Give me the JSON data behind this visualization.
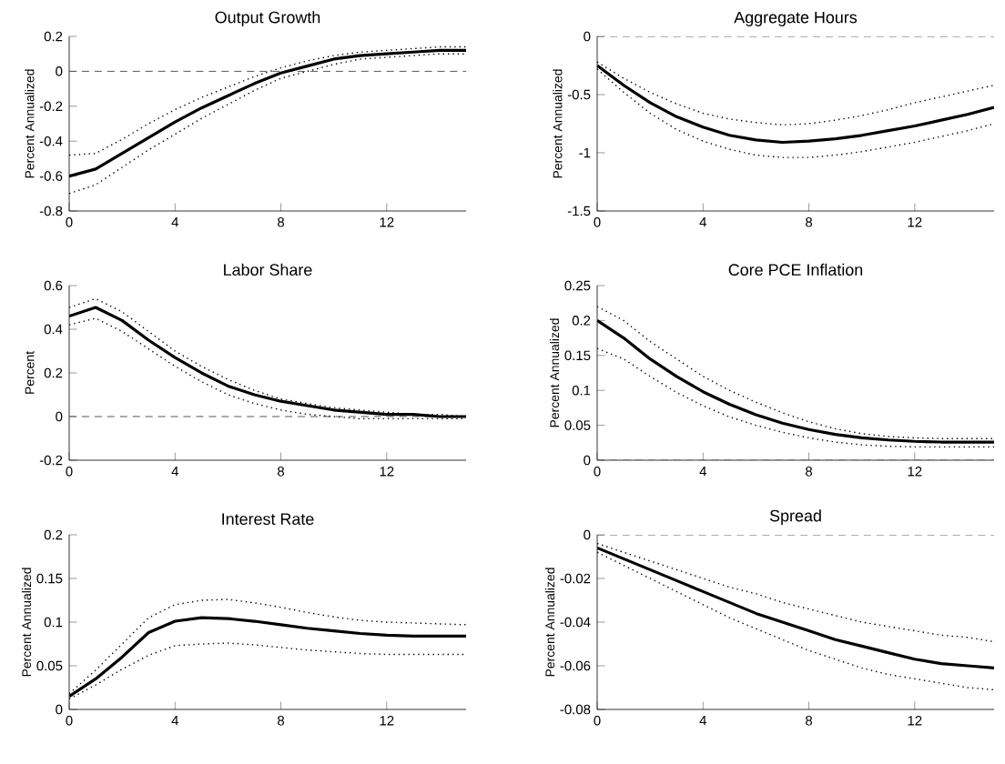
{
  "chart_data": [
    {
      "type": "line",
      "title": "Output Growth",
      "ylabel": "Percent Annualized",
      "xlim": [
        0,
        15
      ],
      "xticks": [
        0,
        4,
        8,
        12
      ],
      "ylim": [
        -0.8,
        0.2
      ],
      "yticks": [
        -0.8,
        -0.6,
        -0.4,
        -0.2,
        0,
        0.2
      ],
      "x": [
        0,
        1,
        2,
        3,
        4,
        5,
        6,
        7,
        8,
        9,
        10,
        11,
        12,
        13,
        14,
        15
      ],
      "series": [
        {
          "color": "#000000",
          "line_style": "solid",
          "values": [
            -0.6,
            -0.56,
            -0.47,
            -0.38,
            -0.29,
            -0.21,
            -0.14,
            -0.07,
            -0.01,
            0.03,
            0.07,
            0.09,
            0.1,
            0.11,
            0.12,
            0.12
          ]
        },
        {
          "color": "#000000",
          "line_style": "dotted",
          "values": [
            -0.48,
            -0.47,
            -0.39,
            -0.3,
            -0.22,
            -0.15,
            -0.09,
            -0.03,
            0.02,
            0.06,
            0.09,
            0.11,
            0.12,
            0.13,
            0.14,
            0.14
          ]
        },
        {
          "color": "#000000",
          "line_style": "dotted",
          "values": [
            -0.7,
            -0.65,
            -0.55,
            -0.45,
            -0.36,
            -0.27,
            -0.19,
            -0.11,
            -0.04,
            0.0,
            0.04,
            0.07,
            0.08,
            0.09,
            0.1,
            0.1
          ]
        }
      ],
      "ref_lines": [
        {
          "axis": "y",
          "value": 0,
          "color": "#555555",
          "line_style": "dashed"
        }
      ]
    },
    {
      "type": "line",
      "title": "Aggregate Hours",
      "ylabel": "Percent Annualized",
      "xlim": [
        0,
        15
      ],
      "xticks": [
        0,
        4,
        8,
        12
      ],
      "ylim": [
        -1.5,
        0
      ],
      "yticks": [
        -1.5,
        -1,
        -0.5,
        0
      ],
      "x": [
        0,
        1,
        2,
        3,
        4,
        5,
        6,
        7,
        8,
        9,
        10,
        11,
        12,
        13,
        14,
        15
      ],
      "series": [
        {
          "color": "#000000",
          "line_style": "solid",
          "values": [
            -0.25,
            -0.42,
            -0.57,
            -0.69,
            -0.78,
            -0.85,
            -0.89,
            -0.91,
            -0.9,
            -0.88,
            -0.85,
            -0.81,
            -0.77,
            -0.72,
            -0.67,
            -0.61
          ]
        },
        {
          "color": "#000000",
          "line_style": "dotted",
          "values": [
            -0.22,
            -0.36,
            -0.48,
            -0.58,
            -0.66,
            -0.71,
            -0.74,
            -0.76,
            -0.75,
            -0.72,
            -0.68,
            -0.63,
            -0.57,
            -0.52,
            -0.47,
            -0.42
          ]
        },
        {
          "color": "#000000",
          "line_style": "dotted",
          "values": [
            -0.28,
            -0.48,
            -0.66,
            -0.8,
            -0.9,
            -0.97,
            -1.02,
            -1.04,
            -1.04,
            -1.02,
            -0.99,
            -0.95,
            -0.91,
            -0.86,
            -0.81,
            -0.75
          ]
        }
      ],
      "ref_lines": [
        {
          "axis": "y",
          "value": 0,
          "color": "#555555",
          "line_style": "dashed"
        }
      ]
    },
    {
      "type": "line",
      "title": "Labor Share",
      "ylabel": "Percent",
      "xlim": [
        0,
        15
      ],
      "xticks": [
        0,
        4,
        8,
        12
      ],
      "ylim": [
        -0.2,
        0.6
      ],
      "yticks": [
        -0.2,
        0,
        0.2,
        0.4,
        0.6
      ],
      "x": [
        0,
        1,
        2,
        3,
        4,
        5,
        6,
        7,
        8,
        9,
        10,
        11,
        12,
        13,
        14,
        15
      ],
      "series": [
        {
          "color": "#000000",
          "line_style": "solid",
          "values": [
            0.46,
            0.5,
            0.44,
            0.35,
            0.27,
            0.2,
            0.14,
            0.1,
            0.07,
            0.05,
            0.03,
            0.02,
            0.01,
            0.01,
            0.0,
            0.0
          ]
        },
        {
          "color": "#000000",
          "line_style": "dotted",
          "values": [
            0.5,
            0.54,
            0.48,
            0.39,
            0.3,
            0.23,
            0.17,
            0.12,
            0.08,
            0.06,
            0.04,
            0.03,
            0.02,
            0.01,
            0.01,
            0.0
          ]
        },
        {
          "color": "#000000",
          "line_style": "dotted",
          "values": [
            0.42,
            0.45,
            0.39,
            0.31,
            0.23,
            0.16,
            0.1,
            0.06,
            0.03,
            0.01,
            0.0,
            -0.01,
            -0.01,
            -0.01,
            -0.01,
            -0.01
          ]
        }
      ],
      "ref_lines": [
        {
          "axis": "y",
          "value": 0,
          "color": "#555555",
          "line_style": "dashed"
        }
      ]
    },
    {
      "type": "line",
      "title": "Core PCE Inflation",
      "ylabel": "Percent Annualized",
      "xlim": [
        0,
        15
      ],
      "xticks": [
        0,
        4,
        8,
        12
      ],
      "ylim": [
        0,
        0.25
      ],
      "yticks": [
        0,
        0.05,
        0.1,
        0.15,
        0.2,
        0.25
      ],
      "x": [
        0,
        1,
        2,
        3,
        4,
        5,
        6,
        7,
        8,
        9,
        10,
        11,
        12,
        13,
        14,
        15
      ],
      "series": [
        {
          "color": "#000000",
          "line_style": "solid",
          "values": [
            0.2,
            0.175,
            0.145,
            0.12,
            0.098,
            0.08,
            0.065,
            0.053,
            0.044,
            0.037,
            0.032,
            0.029,
            0.027,
            0.026,
            0.026,
            0.026
          ]
        },
        {
          "color": "#000000",
          "line_style": "dotted",
          "values": [
            0.22,
            0.2,
            0.17,
            0.145,
            0.12,
            0.1,
            0.083,
            0.068,
            0.055,
            0.045,
            0.038,
            0.034,
            0.032,
            0.031,
            0.031,
            0.031
          ]
        },
        {
          "color": "#000000",
          "line_style": "dotted",
          "values": [
            0.16,
            0.145,
            0.12,
            0.097,
            0.078,
            0.062,
            0.05,
            0.04,
            0.032,
            0.026,
            0.022,
            0.02,
            0.019,
            0.019,
            0.019,
            0.019
          ]
        }
      ],
      "ref_lines": [
        {
          "axis": "y",
          "value": 0,
          "color": "#555555",
          "line_style": "dashed"
        }
      ]
    },
    {
      "type": "line",
      "title": "Interest Rate",
      "ylabel": "Percent Annualized",
      "xlim": [
        0,
        15
      ],
      "xticks": [
        0,
        4,
        8,
        12
      ],
      "ylim": [
        0,
        0.2
      ],
      "yticks": [
        0,
        0.05,
        0.1,
        0.15,
        0.2
      ],
      "x": [
        0,
        1,
        2,
        3,
        4,
        5,
        6,
        7,
        8,
        9,
        10,
        11,
        12,
        13,
        14,
        15
      ],
      "series": [
        {
          "color": "#000000",
          "line_style": "solid",
          "values": [
            0.015,
            0.035,
            0.06,
            0.088,
            0.101,
            0.105,
            0.104,
            0.101,
            0.097,
            0.093,
            0.09,
            0.087,
            0.085,
            0.084,
            0.084,
            0.084
          ]
        },
        {
          "color": "#000000",
          "line_style": "dotted",
          "values": [
            0.018,
            0.045,
            0.075,
            0.105,
            0.12,
            0.125,
            0.126,
            0.122,
            0.117,
            0.111,
            0.106,
            0.102,
            0.1,
            0.099,
            0.098,
            0.097
          ]
        },
        {
          "color": "#000000",
          "line_style": "dotted",
          "values": [
            0.012,
            0.028,
            0.046,
            0.062,
            0.073,
            0.075,
            0.076,
            0.074,
            0.071,
            0.068,
            0.066,
            0.064,
            0.063,
            0.063,
            0.063,
            0.063
          ]
        }
      ]
    },
    {
      "type": "line",
      "title": "Spread",
      "ylabel": "Percent Annualized",
      "xlim": [
        0,
        15
      ],
      "xticks": [
        0,
        4,
        8,
        12
      ],
      "ylim": [
        -0.08,
        0
      ],
      "yticks": [
        -0.08,
        -0.06,
        -0.04,
        -0.02,
        0
      ],
      "x": [
        0,
        1,
        2,
        3,
        4,
        5,
        6,
        7,
        8,
        9,
        10,
        11,
        12,
        13,
        14,
        15
      ],
      "series": [
        {
          "color": "#000000",
          "line_style": "solid",
          "values": [
            -0.006,
            -0.011,
            -0.016,
            -0.021,
            -0.026,
            -0.031,
            -0.036,
            -0.04,
            -0.044,
            -0.048,
            -0.051,
            -0.054,
            -0.057,
            -0.059,
            -0.06,
            -0.061
          ]
        },
        {
          "color": "#000000",
          "line_style": "dotted",
          "values": [
            -0.004,
            -0.008,
            -0.012,
            -0.016,
            -0.02,
            -0.024,
            -0.027,
            -0.031,
            -0.034,
            -0.037,
            -0.04,
            -0.042,
            -0.044,
            -0.046,
            -0.047,
            -0.049
          ]
        },
        {
          "color": "#000000",
          "line_style": "dotted",
          "values": [
            -0.008,
            -0.014,
            -0.02,
            -0.026,
            -0.032,
            -0.038,
            -0.043,
            -0.048,
            -0.053,
            -0.057,
            -0.061,
            -0.064,
            -0.066,
            -0.068,
            -0.07,
            -0.071
          ]
        }
      ],
      "ref_lines": [
        {
          "axis": "y",
          "value": 0,
          "color": "#555555",
          "line_style": "dashed"
        }
      ]
    }
  ]
}
